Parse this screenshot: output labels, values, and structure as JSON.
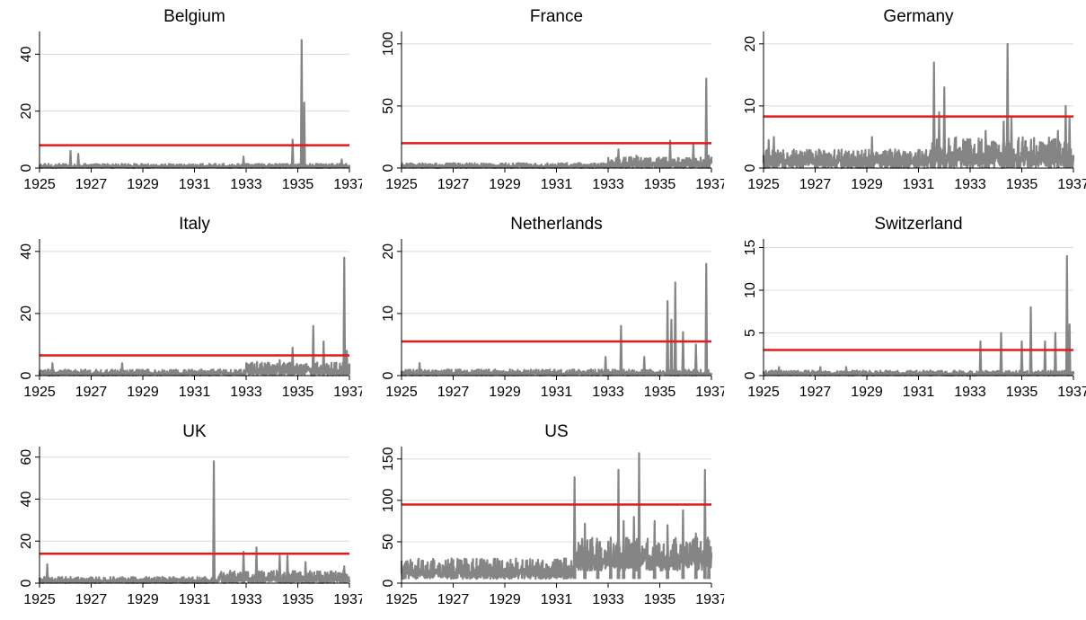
{
  "colors": {
    "series": "#858585",
    "threshold": "#e41a1c",
    "grid": "#dcdcdc",
    "axis": "#000000"
  },
  "chart_data": [
    {
      "type": "line",
      "title": "Belgium",
      "xlim": [
        1925,
        1937
      ],
      "xticks": [
        1925,
        1927,
        1929,
        1931,
        1933,
        1935,
        1937
      ],
      "ylim": [
        0,
        48
      ],
      "yticks": [
        0,
        20,
        40
      ],
      "grid": true,
      "threshold": 8,
      "base": {
        "start": 1925,
        "end": 1937,
        "low": 0,
        "high": 1.5
      },
      "spikes": [
        [
          1926.2,
          6
        ],
        [
          1926.5,
          5
        ],
        [
          1932.9,
          4
        ],
        [
          1934.8,
          10
        ],
        [
          1935.15,
          45
        ],
        [
          1935.25,
          23
        ],
        [
          1936.7,
          3
        ]
      ],
      "series": [
        {
          "values": "spikes"
        },
        {
          "values": "threshold"
        }
      ]
    },
    {
      "type": "line",
      "title": "France",
      "xlim": [
        1925,
        1937
      ],
      "xticks": [
        1925,
        1927,
        1929,
        1931,
        1933,
        1935,
        1937
      ],
      "ylim": [
        0,
        110
      ],
      "yticks": [
        0,
        50,
        100
      ],
      "grid": true,
      "threshold": 20,
      "base": {
        "start": 1925,
        "end": 1937,
        "low": 0,
        "high": 4
      },
      "spikes": [
        [
          1933.4,
          15
        ],
        [
          1934.1,
          10
        ],
        [
          1935.4,
          22
        ],
        [
          1936.3,
          20
        ],
        [
          1936.8,
          72
        ],
        [
          1936.9,
          10
        ]
      ],
      "series": [
        {
          "values": "spikes"
        },
        {
          "values": "threshold"
        }
      ]
    },
    {
      "type": "line",
      "title": "Germany",
      "xlim": [
        1925,
        1937
      ],
      "xticks": [
        1925,
        1927,
        1929,
        1931,
        1933,
        1935,
        1937
      ],
      "ylim": [
        0,
        22
      ],
      "yticks": [
        0,
        10,
        20
      ],
      "grid": true,
      "threshold": 8.3,
      "base": {
        "start": 1925,
        "end": 1937,
        "low": 0,
        "high": 3
      },
      "spikes": [
        [
          1925.2,
          4.5
        ],
        [
          1925.4,
          5
        ],
        [
          1929.2,
          5
        ],
        [
          1931.6,
          17
        ],
        [
          1931.8,
          9
        ],
        [
          1932,
          13
        ],
        [
          1933.6,
          6
        ],
        [
          1934.3,
          7.5
        ],
        [
          1934.45,
          20
        ],
        [
          1934.6,
          8
        ],
        [
          1936.4,
          6
        ],
        [
          1936.7,
          10
        ],
        [
          1936.85,
          8
        ]
      ],
      "series": [
        {
          "values": "spikes"
        },
        {
          "values": "threshold"
        }
      ]
    },
    {
      "type": "line",
      "title": "Italy",
      "xlim": [
        1925,
        1937
      ],
      "xticks": [
        1925,
        1927,
        1929,
        1931,
        1933,
        1935,
        1937
      ],
      "ylim": [
        0,
        44
      ],
      "yticks": [
        0,
        20,
        40
      ],
      "grid": true,
      "threshold": 6.5,
      "base": {
        "start": 1925,
        "end": 1937,
        "low": 0,
        "high": 2
      },
      "spikes": [
        [
          1925.5,
          4
        ],
        [
          1928.2,
          4
        ],
        [
          1934.3,
          5
        ],
        [
          1934.8,
          9
        ],
        [
          1935.6,
          16
        ],
        [
          1936,
          11
        ],
        [
          1936.8,
          38
        ],
        [
          1936.9,
          8
        ]
      ],
      "series": [
        {
          "values": "spikes"
        },
        {
          "values": "threshold"
        }
      ]
    },
    {
      "type": "line",
      "title": "Netherlands",
      "xlim": [
        1925,
        1937
      ],
      "xticks": [
        1925,
        1927,
        1929,
        1931,
        1933,
        1935,
        1937
      ],
      "ylim": [
        0,
        22
      ],
      "yticks": [
        0,
        10,
        20
      ],
      "grid": true,
      "threshold": 5.5,
      "base": {
        "start": 1925,
        "end": 1937,
        "low": 0,
        "high": 1
      },
      "spikes": [
        [
          1925.7,
          2
        ],
        [
          1932.9,
          3
        ],
        [
          1933.5,
          8
        ],
        [
          1934.4,
          3
        ],
        [
          1935.3,
          12
        ],
        [
          1935.45,
          9
        ],
        [
          1935.6,
          15
        ],
        [
          1935.9,
          7
        ],
        [
          1936.4,
          5
        ],
        [
          1936.8,
          18
        ]
      ],
      "series": [
        {
          "values": "spikes"
        },
        {
          "values": "threshold"
        }
      ]
    },
    {
      "type": "line",
      "title": "Switzerland",
      "xlim": [
        1925,
        1937
      ],
      "xticks": [
        1925,
        1927,
        1929,
        1931,
        1933,
        1935,
        1937
      ],
      "ylim": [
        0,
        16
      ],
      "yticks": [
        0,
        5,
        10,
        15
      ],
      "grid": true,
      "threshold": 3,
      "base": {
        "start": 1925,
        "end": 1937,
        "low": 0,
        "high": 0.6
      },
      "spikes": [
        [
          1925.6,
          1
        ],
        [
          1927.2,
          1
        ],
        [
          1928.2,
          1
        ],
        [
          1933.4,
          4
        ],
        [
          1934.2,
          5
        ],
        [
          1935,
          4
        ],
        [
          1935.35,
          8
        ],
        [
          1935.9,
          4
        ],
        [
          1936.3,
          5
        ],
        [
          1936.75,
          14
        ],
        [
          1936.85,
          6
        ]
      ],
      "series": [
        {
          "values": "spikes"
        },
        {
          "values": "threshold"
        }
      ]
    },
    {
      "type": "line",
      "title": "UK",
      "xlim": [
        1925,
        1937
      ],
      "xticks": [
        1925,
        1927,
        1929,
        1931,
        1933,
        1935,
        1937
      ],
      "ylim": [
        0,
        65
      ],
      "yticks": [
        0,
        20,
        40,
        60
      ],
      "grid": true,
      "threshold": 14,
      "base": {
        "start": 1925,
        "end": 1937,
        "low": 0,
        "high": 3
      },
      "spikes": [
        [
          1925.3,
          9
        ],
        [
          1931.75,
          58
        ],
        [
          1932.9,
          15
        ],
        [
          1933.4,
          17
        ],
        [
          1934.3,
          13
        ],
        [
          1934.6,
          13
        ],
        [
          1935.3,
          10
        ],
        [
          1936.8,
          8
        ]
      ],
      "series": [
        {
          "values": "spikes"
        },
        {
          "values": "threshold"
        }
      ]
    },
    {
      "type": "line",
      "title": "US",
      "xlim": [
        1925,
        1937
      ],
      "xticks": [
        1925,
        1927,
        1929,
        1931,
        1933,
        1935,
        1937
      ],
      "ylim": [
        0,
        165
      ],
      "yticks": [
        0,
        50,
        100,
        150
      ],
      "grid": true,
      "threshold": 95,
      "base": {
        "start": 1925,
        "end": 1937,
        "low": 5,
        "high": 30
      },
      "spikes": [
        [
          1931.7,
          128
        ],
        [
          1932.1,
          72
        ],
        [
          1932.6,
          50
        ],
        [
          1933.1,
          55
        ],
        [
          1933.4,
          137
        ],
        [
          1933.6,
          75
        ],
        [
          1934,
          80
        ],
        [
          1934.2,
          157
        ],
        [
          1934.8,
          75
        ],
        [
          1935.3,
          70
        ],
        [
          1935.9,
          88
        ],
        [
          1936.4,
          60
        ],
        [
          1936.75,
          137
        ],
        [
          1936.9,
          50
        ]
      ],
      "series": [
        {
          "values": "spikes"
        },
        {
          "values": "threshold"
        }
      ]
    }
  ]
}
